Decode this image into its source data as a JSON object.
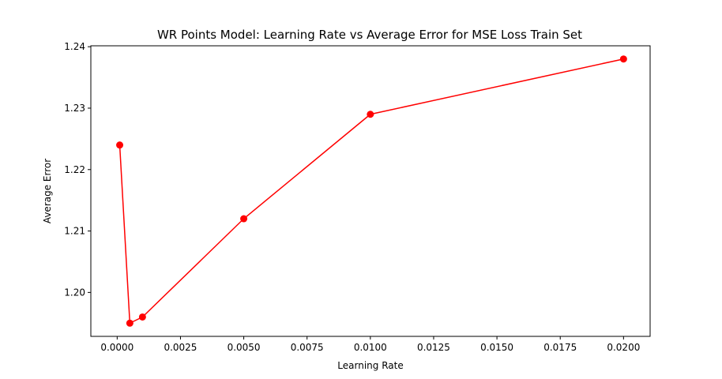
{
  "chart_data": {
    "type": "line",
    "title": "WR Points Model: Learning Rate vs Average Error for MSE Loss Train Set",
    "xlabel": "Learning Rate",
    "ylabel": "Average Error",
    "xlim": [
      -0.00104,
      0.02105
    ],
    "ylim": [
      1.19285,
      1.24015
    ],
    "grid": false,
    "x_ticks": [
      0.0,
      0.0025,
      0.005,
      0.0075,
      0.01,
      0.0125,
      0.015,
      0.0175,
      0.02
    ],
    "x_tick_labels": [
      "0.0000",
      "0.0025",
      "0.0050",
      "0.0075",
      "0.0100",
      "0.0125",
      "0.0150",
      "0.0175",
      "0.0200"
    ],
    "y_ticks": [
      1.2,
      1.21,
      1.22,
      1.23,
      1.24
    ],
    "y_tick_labels": [
      "1.20",
      "1.21",
      "1.22",
      "1.23",
      "1.24"
    ],
    "series": [
      {
        "name": "Average Error",
        "color": "#ff0000",
        "marker": "circle",
        "x": [
          0.0001,
          0.0005,
          0.001,
          0.005,
          0.01,
          0.02
        ],
        "values": [
          1.224,
          1.195,
          1.196,
          1.212,
          1.229,
          1.238
        ]
      }
    ]
  }
}
